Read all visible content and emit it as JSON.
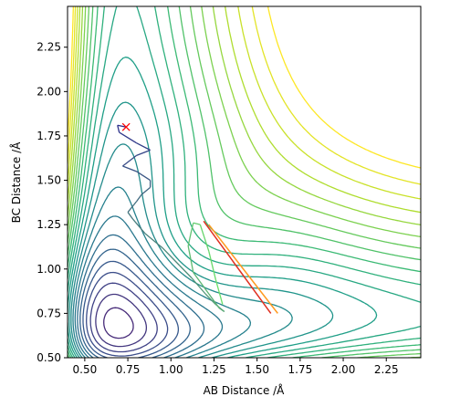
{
  "chart_data": {
    "type": "contour",
    "xlabel": "AB Distance /Å",
    "ylabel": "BC Distance /Å",
    "xlim": [
      0.4,
      2.45
    ],
    "ylim": [
      0.5,
      2.48
    ],
    "x_ticks": [
      "0.50",
      "0.75",
      "1.00",
      "1.25",
      "1.50",
      "1.75",
      "2.00",
      "2.25"
    ],
    "y_ticks": [
      "0.50",
      "0.75",
      "1.00",
      "1.25",
      "1.50",
      "1.75",
      "2.00",
      "2.25"
    ],
    "grid": false,
    "colormap": "viridis",
    "contour_levels": 26,
    "marker": {
      "symbol": "x",
      "color": "#ff0000",
      "x": 0.74,
      "y": 1.8
    },
    "trajectory": {
      "color_start": "#2c2c8c",
      "color_end": "#6ae06a",
      "points": [
        [
          0.74,
          1.8
        ],
        [
          0.69,
          1.81
        ],
        [
          0.7,
          1.77
        ],
        [
          0.8,
          1.71
        ],
        [
          0.88,
          1.67
        ],
        [
          0.8,
          1.64
        ],
        [
          0.72,
          1.58
        ],
        [
          0.8,
          1.55
        ],
        [
          0.88,
          1.5
        ],
        [
          0.88,
          1.46
        ],
        [
          0.83,
          1.42
        ],
        [
          0.8,
          1.38
        ],
        [
          0.75,
          1.32
        ],
        [
          0.78,
          1.28
        ],
        [
          0.85,
          1.2
        ],
        [
          0.95,
          1.12
        ],
        [
          1.05,
          1.02
        ],
        [
          1.12,
          0.95
        ],
        [
          1.2,
          0.86
        ],
        [
          1.26,
          0.8
        ],
        [
          1.31,
          0.76
        ],
        [
          1.28,
          0.78
        ],
        [
          1.22,
          0.86
        ],
        [
          1.13,
          0.98
        ],
        [
          1.1,
          1.13
        ],
        [
          1.12,
          1.22
        ],
        [
          1.13,
          1.26
        ],
        [
          1.17,
          1.25
        ],
        [
          1.22,
          1.1
        ],
        [
          1.26,
          0.94
        ],
        [
          1.3,
          0.8
        ]
      ]
    },
    "transition_lines": [
      {
        "color": "#e03020",
        "from": [
          1.19,
          1.27
        ],
        "to": [
          1.58,
          0.75
        ]
      },
      {
        "color": "#ff9a20",
        "from": [
          1.22,
          1.25
        ],
        "to": [
          1.62,
          0.75
        ]
      }
    ]
  }
}
